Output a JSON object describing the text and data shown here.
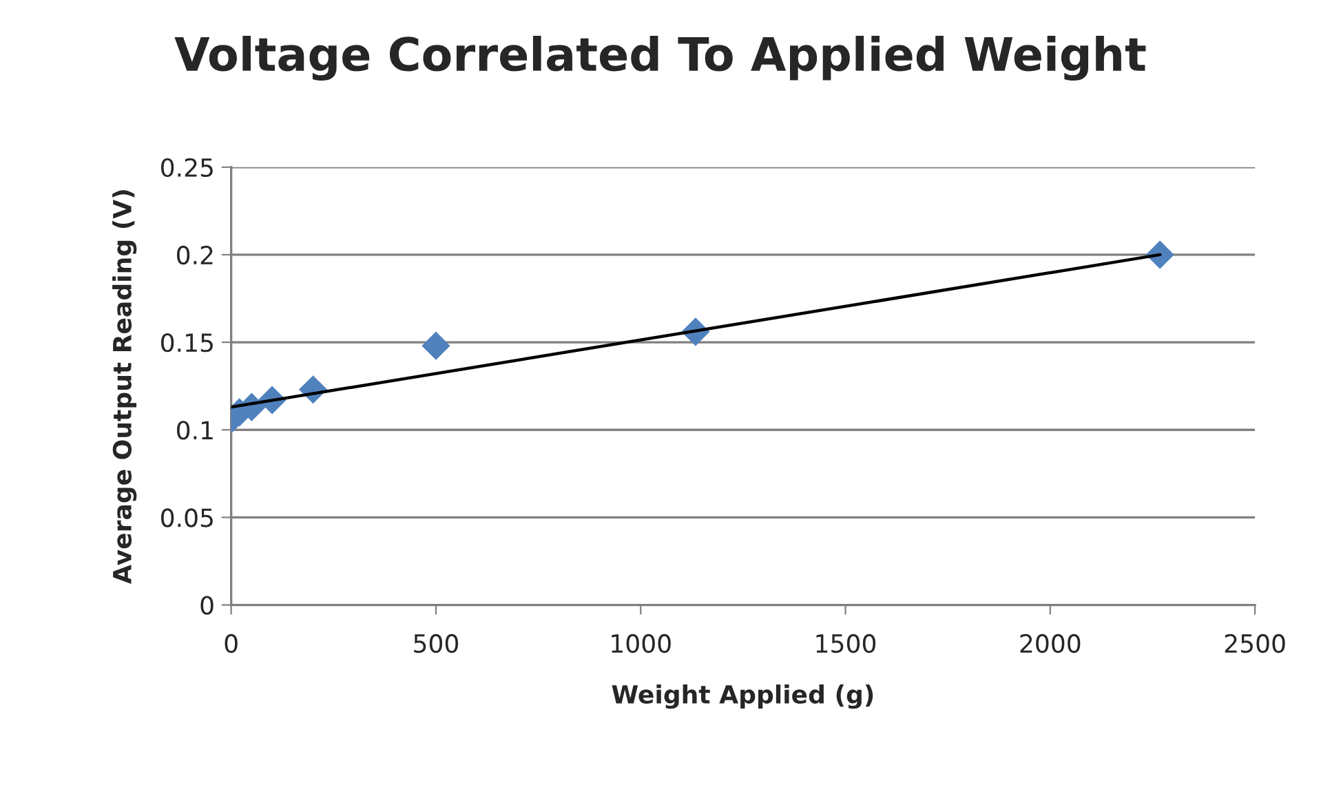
{
  "chart_data": {
    "type": "scatter",
    "title": "Voltage Correlated To Applied Weight",
    "xlabel": "Weight Applied (g)",
    "ylabel": "Average Output Reading (V)",
    "series": [
      {
        "color": "#4f81bd",
        "marker": "diamond",
        "x": [
          0,
          20,
          50,
          100,
          200,
          500,
          1134,
          2268
        ],
        "values": [
          0.106,
          0.11,
          0.113,
          0.117,
          0.123,
          0.148,
          0.156,
          0.2
        ]
      },
      {
        "type": "line",
        "color": "#000000",
        "marker": "none",
        "line_style": "solid",
        "x": [
          0,
          2268
        ],
        "values": [
          0.113,
          0.2
        ]
      }
    ],
    "xlim": [
      0,
      2500
    ],
    "xticks": [
      0,
      500,
      1000,
      1500,
      2000,
      2500
    ],
    "ylim": [
      0,
      0.25
    ],
    "yticks": [
      0,
      0.05,
      0.1,
      0.15,
      0.2,
      0.25
    ],
    "grid": "y"
  }
}
